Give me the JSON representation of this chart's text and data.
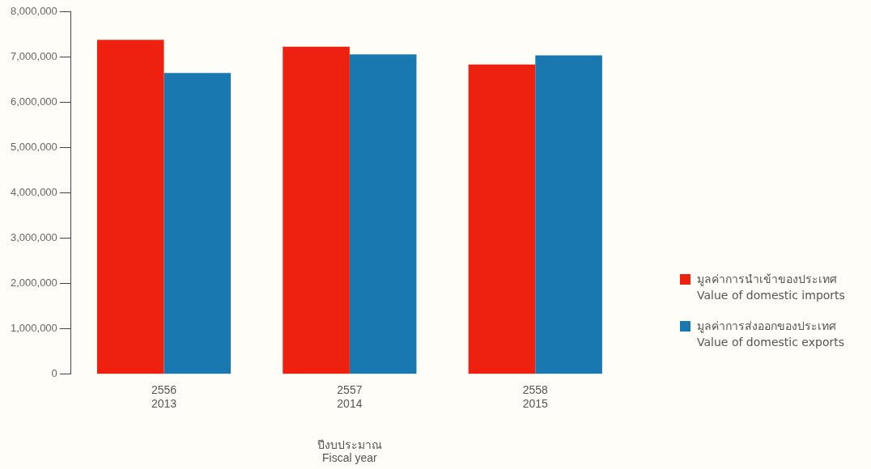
{
  "chart_data": {
    "type": "bar",
    "xlabel": "ปีงบประมาณ\nFiscal year",
    "categories": [
      "2556\n2013",
      "2557\n2014",
      "2558\n2015"
    ],
    "series": [
      {
        "name": "มูลค่าการนำเข้าของประเทศ\nValue of domestic imports",
        "color": "#ee2010",
        "values": [
          7370000,
          7220000,
          6830000
        ]
      },
      {
        "name": "มูลค่าการส่งออกของประเทศ\nValue of domestic exports",
        "color": "#1a78b0",
        "values": [
          6640000,
          7050000,
          7030000
        ]
      }
    ],
    "ylim": [
      0,
      8000000
    ],
    "yticks": [
      0,
      {
        "value": 1000000,
        "label": "1,000,000"
      },
      {
        "value": 2000000,
        "label": "2,000,000"
      },
      {
        "value": 3000000,
        "label": "3,000,000"
      },
      {
        "value": 4000000,
        "label": "4,000,000"
      },
      {
        "value": 5000000,
        "label": "5,000,000"
      },
      {
        "value": 6000000,
        "label": "6,000,000"
      },
      {
        "value": 7000000,
        "label": "7,000,000"
      },
      {
        "value": 8000000,
        "label": "8,000,000"
      }
    ],
    "grid": false,
    "legend": "right"
  }
}
